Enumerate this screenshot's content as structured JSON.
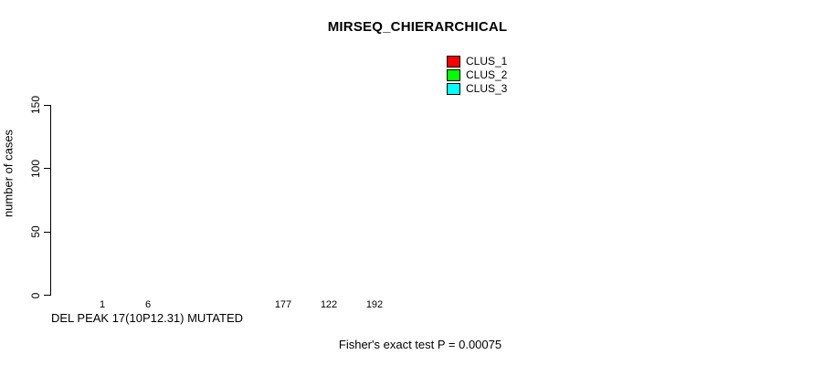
{
  "chart_data": {
    "type": "bar",
    "title": "MIRSEQ_CHIERARCHICAL",
    "xlabel": "DEL PEAK 17(10P12.31) MUTATED",
    "ylabel": "number of cases",
    "ylim": [
      0,
      150
    ],
    "yticks": [
      0,
      50,
      100,
      150
    ],
    "grid": false,
    "legend_position": "top-right",
    "group_axis_labels": [
      "DEL PEAK 17(10P12.31) MUTATED",
      ""
    ],
    "series": [
      {
        "name": "CLUS_1",
        "color": "#ff0000",
        "values": [
          1,
          177
        ]
      },
      {
        "name": "CLUS_2",
        "color": "#00ff00",
        "values": [
          6,
          122
        ]
      },
      {
        "name": "CLUS_3",
        "color": "#00ffff",
        "values": [
          0,
          192
        ]
      }
    ],
    "bar_value_labels": [
      [
        "1",
        "6",
        ""
      ],
      [
        "177",
        "122",
        "192"
      ]
    ],
    "annotation": "Fisher's exact test P = 0.00075"
  },
  "legend": {
    "items": [
      {
        "label": "CLUS_1",
        "color": "#ff0000"
      },
      {
        "label": "CLUS_2",
        "color": "#00ff00"
      },
      {
        "label": "CLUS_3",
        "color": "#00ffff"
      }
    ]
  }
}
